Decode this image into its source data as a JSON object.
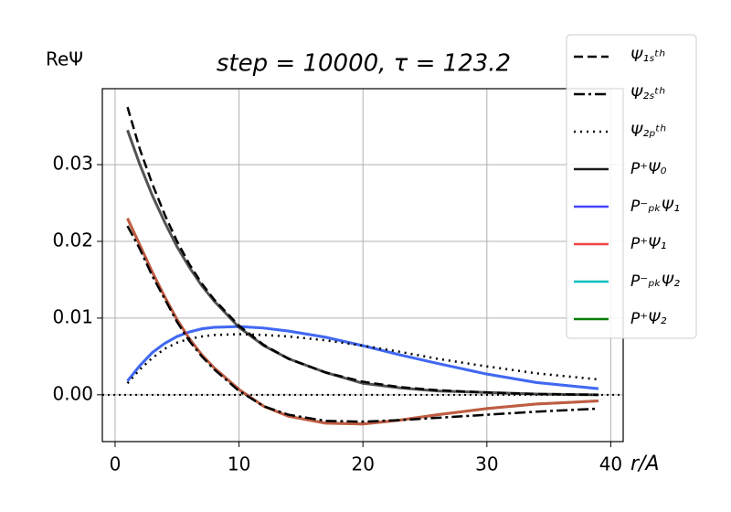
{
  "chart_data": {
    "type": "line",
    "title": "step = 10000, τ = 123.2",
    "y_annotation": "ReΨ",
    "x_label": "r/A",
    "x": [
      1,
      2,
      3,
      4,
      5,
      6,
      7,
      8,
      10,
      12,
      14,
      17,
      20,
      23,
      26,
      30,
      34,
      39
    ],
    "series": [
      {
        "name": "Ψ₁ₛᵗʰ",
        "color": "#000000",
        "linestyle": "dashed",
        "values": [
          0.0375,
          0.032,
          0.0275,
          0.0235,
          0.02,
          0.017,
          0.0145,
          0.0124,
          0.009,
          0.0065,
          0.0047,
          0.0029,
          0.0017,
          0.001,
          0.0006,
          0.0003,
          0.0001,
          0.0
        ]
      },
      {
        "name": "Ψ₂ₛᵗʰ",
        "color": "#000000",
        "linestyle": "dashdot",
        "values": [
          0.022,
          0.019,
          0.0155,
          0.0125,
          0.0095,
          0.007,
          0.005,
          0.0033,
          0.0005,
          -0.0015,
          -0.0026,
          -0.0034,
          -0.0035,
          -0.0033,
          -0.003,
          -0.0026,
          -0.0022,
          -0.0018
        ]
      },
      {
        "name": "Ψ₂ₚᵗʰ",
        "color": "#000000",
        "linestyle": "dotted",
        "values": [
          0.0015,
          0.0033,
          0.0048,
          0.006,
          0.0068,
          0.0073,
          0.0076,
          0.0078,
          0.0079,
          0.0078,
          0.0076,
          0.0071,
          0.0064,
          0.0056,
          0.0047,
          0.0037,
          0.0028,
          0.002
        ]
      },
      {
        "name": "P⁺Ψ₀",
        "color": "#1a1a1a",
        "linestyle": "solid",
        "values": [
          0.0345,
          0.03,
          0.026,
          0.0225,
          0.0193,
          0.0166,
          0.0142,
          0.0122,
          0.0088,
          0.0064,
          0.0047,
          0.0029,
          0.0015,
          0.0009,
          0.0005,
          0.0003,
          0.0001,
          0.0
        ]
      },
      {
        "name": "P⁻ₚₖΨ₁",
        "color": "#4444ff",
        "linestyle": "solid",
        "values": [
          0.0018,
          0.0038,
          0.0055,
          0.0067,
          0.0076,
          0.0082,
          0.0086,
          0.0088,
          0.0089,
          0.0087,
          0.0083,
          0.0075,
          0.0064,
          0.0052,
          0.0041,
          0.0027,
          0.0016,
          0.0008
        ]
      },
      {
        "name": "P⁺Ψ₁",
        "color": "#ee4444",
        "linestyle": "solid",
        "values": [
          0.023,
          0.0195,
          0.016,
          0.0128,
          0.0098,
          0.0073,
          0.0052,
          0.0035,
          0.0007,
          -0.0015,
          -0.0028,
          -0.0037,
          -0.0038,
          -0.0033,
          -0.0026,
          -0.0018,
          -0.0012,
          -0.0008
        ]
      },
      {
        "name": "P⁻ₚₖΨ₂",
        "color": "#00bfbf",
        "linestyle": "solid",
        "values": [
          0.0018,
          0.0038,
          0.0055,
          0.0067,
          0.0076,
          0.0082,
          0.0086,
          0.0088,
          0.0089,
          0.0087,
          0.0083,
          0.0075,
          0.0064,
          0.0052,
          0.0041,
          0.0027,
          0.0016,
          0.0008
        ]
      },
      {
        "name": "P⁺Ψ₂",
        "color": "#007f00",
        "linestyle": "solid",
        "values": [
          0.023,
          0.0195,
          0.016,
          0.0128,
          0.0098,
          0.0073,
          0.0052,
          0.0035,
          0.0007,
          -0.0015,
          -0.0028,
          -0.0037,
          -0.0038,
          -0.0033,
          -0.0026,
          -0.0018,
          -0.0012,
          -0.0008
        ]
      }
    ],
    "hline": 0,
    "xlim": [
      -1.03,
      41.0
    ],
    "xticks": [
      0,
      10,
      20,
      30,
      40
    ],
    "ylim": [
      -0.0061,
      0.0399
    ],
    "yticks": [
      {
        "value": 0.0,
        "label": "0.00"
      },
      {
        "value": 0.01,
        "label": "0.01"
      },
      {
        "value": 0.02,
        "label": "0.02"
      },
      {
        "value": 0.03,
        "label": "0.03"
      }
    ],
    "grid": true,
    "legend": "upper right"
  }
}
